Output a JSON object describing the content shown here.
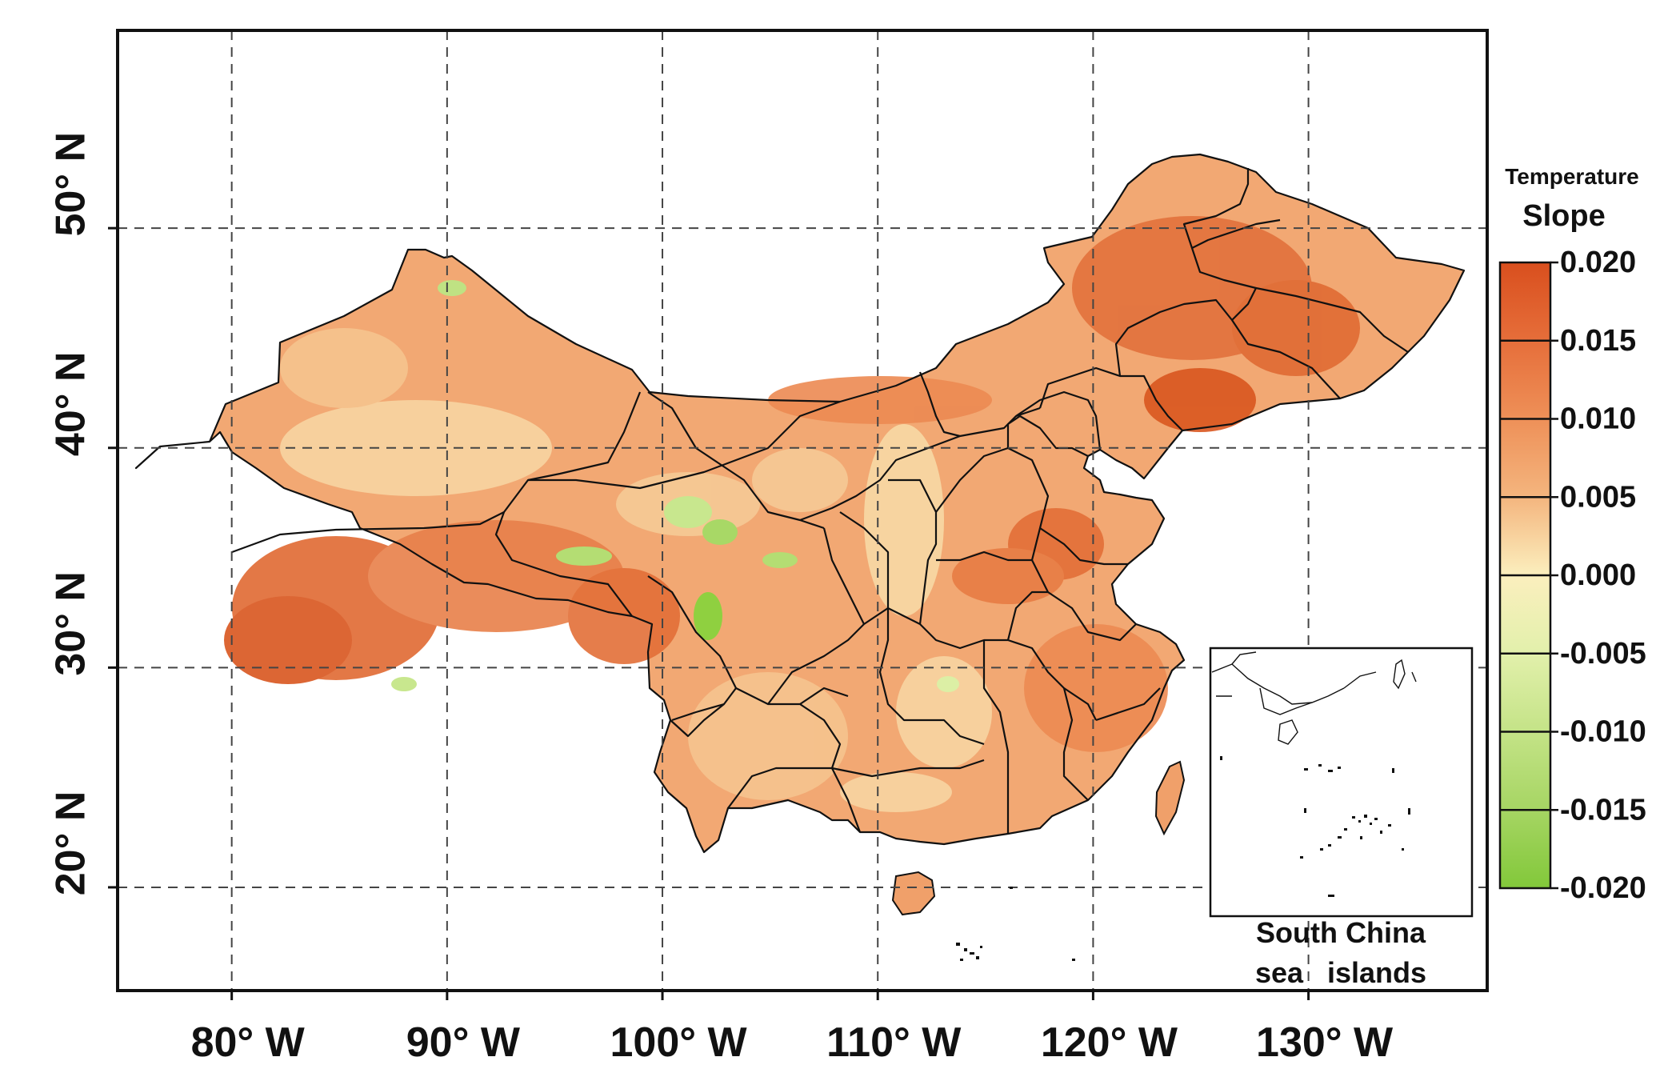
{
  "axes": {
    "x_ticks": [
      {
        "value": 80,
        "label": "80° W"
      },
      {
        "value": 90,
        "label": "90° W"
      },
      {
        "value": 100,
        "label": "100° W"
      },
      {
        "value": 110,
        "label": "110° W"
      },
      {
        "value": 120,
        "label": "120° W"
      },
      {
        "value": 130,
        "label": "130° W"
      }
    ],
    "y_ticks": [
      {
        "value": 20,
        "label": "20° N"
      },
      {
        "value": 30,
        "label": "30° N"
      },
      {
        "value": 40,
        "label": "40° N"
      },
      {
        "value": 50,
        "label": "50° N"
      }
    ],
    "x_range": [
      74.7,
      138.3
    ],
    "y_range": [
      15.3,
      59.0
    ],
    "grid": "dashed"
  },
  "legend": {
    "title_line1": "Temperature",
    "title_line2": "Slope",
    "stops": [
      "0.020",
      "0.015",
      "0.010",
      "0.005",
      "0.000",
      "-0.005",
      "-0.010",
      "-0.015",
      "-0.020"
    ],
    "colors": [
      "#d94f1e",
      "#e87a45",
      "#f0a06a",
      "#f7cc98",
      "#fbf2c0",
      "#ddeea5",
      "#c2e284",
      "#a3d460",
      "#82c83a"
    ]
  },
  "inset": {
    "label_line1": "South China",
    "label_line2": "sea   islands"
  },
  "colors": {
    "border": "#111111",
    "grid": "#444444",
    "land_base": "#f2a873",
    "warm": "#d9561f",
    "cool": "#8fd040"
  }
}
